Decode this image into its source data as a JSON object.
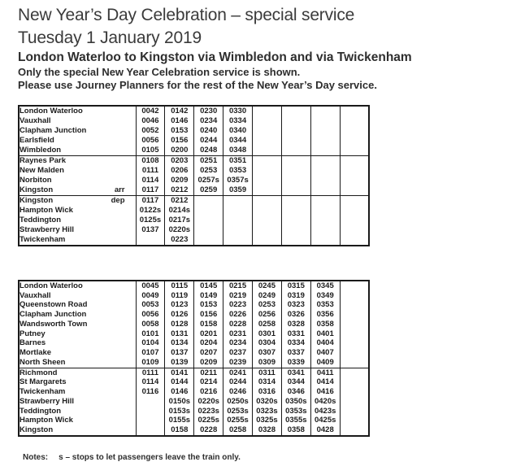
{
  "colors": {
    "background": "#ffffff",
    "heading_text": "#3b3b3b",
    "body_text": "#2e2e2e",
    "table_text": "#1c1c1c",
    "table_border": "#1a1a1a"
  },
  "header": {
    "title_line1": "New Year’s Day Celebration – special service",
    "title_line2": "Tuesday 1 January 2019",
    "route": "London Waterloo to Kingston via Wimbledon and via Twickenham",
    "note1": "Only the special New Year Celebration service is shown.",
    "note2": "Please use Journey Planners for the rest of the New Year’s Day service."
  },
  "tables": [
    {
      "id": "waterloo-to-kingston-via-wimbledon",
      "time_columns": 8,
      "sections": [
        {
          "rows": [
            {
              "station": "London Waterloo",
              "note": "",
              "times": [
                "0042",
                "0142",
                "0230",
                "0330",
                "",
                "",
                "",
                ""
              ]
            },
            {
              "station": "Vauxhall",
              "note": "",
              "times": [
                "0046",
                "0146",
                "0234",
                "0334",
                "",
                "",
                "",
                ""
              ]
            },
            {
              "station": "Clapham Junction",
              "note": "",
              "times": [
                "0052",
                "0153",
                "0240",
                "0340",
                "",
                "",
                "",
                ""
              ]
            },
            {
              "station": "Earlsfield",
              "note": "",
              "times": [
                "0056",
                "0156",
                "0244",
                "0344",
                "",
                "",
                "",
                ""
              ]
            },
            {
              "station": "Wimbledon",
              "note": "",
              "times": [
                "0105",
                "0200",
                "0248",
                "0348",
                "",
                "",
                "",
                ""
              ]
            }
          ]
        },
        {
          "rows": [
            {
              "station": "Raynes Park",
              "note": "",
              "times": [
                "0108",
                "0203",
                "0251",
                "0351",
                "",
                "",
                "",
                ""
              ]
            },
            {
              "station": "New Malden",
              "note": "",
              "times": [
                "0111",
                "0206",
                "0253",
                "0353",
                "",
                "",
                "",
                ""
              ]
            },
            {
              "station": "Norbiton",
              "note": "",
              "times": [
                "0114",
                "0209",
                "0257s",
                "0357s",
                "",
                "",
                "",
                ""
              ]
            },
            {
              "station": "Kingston",
              "note": "arr",
              "times": [
                "0117",
                "0212",
                "0259",
                "0359",
                "",
                "",
                "",
                ""
              ]
            }
          ]
        },
        {
          "rows": [
            {
              "station": "Kingston",
              "note": "dep",
              "times": [
                "0117",
                "0212",
                "",
                "",
                "",
                "",
                "",
                ""
              ]
            },
            {
              "station": "Hampton Wick",
              "note": "",
              "times": [
                "0122s",
                "0214s",
                "",
                "",
                "",
                "",
                "",
                ""
              ]
            },
            {
              "station": "Teddington",
              "note": "",
              "times": [
                "0125s",
                "0217s",
                "",
                "",
                "",
                "",
                "",
                ""
              ]
            },
            {
              "station": "Strawberry Hill",
              "note": "",
              "times": [
                "0137",
                "0220s",
                "",
                "",
                "",
                "",
                "",
                ""
              ]
            },
            {
              "station": "Twickenham",
              "note": "",
              "times": [
                "",
                "0223",
                "",
                "",
                "",
                "",
                "",
                ""
              ]
            }
          ]
        }
      ]
    },
    {
      "id": "waterloo-to-kingston-via-twickenham",
      "time_columns": 8,
      "sections": [
        {
          "rows": [
            {
              "station": "London Waterloo",
              "note": "",
              "times": [
                "0045",
                "0115",
                "0145",
                "0215",
                "0245",
                "0315",
                "0345",
                ""
              ]
            },
            {
              "station": "Vauxhall",
              "note": "",
              "times": [
                "0049",
                "0119",
                "0149",
                "0219",
                "0249",
                "0319",
                "0349",
                ""
              ]
            },
            {
              "station": "Queenstown Road",
              "note": "",
              "times": [
                "0053",
                "0123",
                "0153",
                "0223",
                "0253",
                "0323",
                "0353",
                ""
              ]
            },
            {
              "station": "Clapham Junction",
              "note": "",
              "times": [
                "0056",
                "0126",
                "0156",
                "0226",
                "0256",
                "0326",
                "0356",
                ""
              ]
            },
            {
              "station": "Wandsworth Town",
              "note": "",
              "times": [
                "0058",
                "0128",
                "0158",
                "0228",
                "0258",
                "0328",
                "0358",
                ""
              ]
            },
            {
              "station": "Putney",
              "note": "",
              "times": [
                "0101",
                "0131",
                "0201",
                "0231",
                "0301",
                "0331",
                "0401",
                ""
              ]
            },
            {
              "station": "Barnes",
              "note": "",
              "times": [
                "0104",
                "0134",
                "0204",
                "0234",
                "0304",
                "0334",
                "0404",
                ""
              ]
            },
            {
              "station": "Mortlake",
              "note": "",
              "times": [
                "0107",
                "0137",
                "0207",
                "0237",
                "0307",
                "0337",
                "0407",
                ""
              ]
            },
            {
              "station": "North Sheen",
              "note": "",
              "times": [
                "0109",
                "0139",
                "0209",
                "0239",
                "0309",
                "0339",
                "0409",
                ""
              ]
            }
          ]
        },
        {
          "rows": [
            {
              "station": "Richmond",
              "note": "",
              "times": [
                "0111",
                "0141",
                "0211",
                "0241",
                "0311",
                "0341",
                "0411",
                ""
              ]
            },
            {
              "station": "St Margarets",
              "note": "",
              "times": [
                "0114",
                "0144",
                "0214",
                "0244",
                "0314",
                "0344",
                "0414",
                ""
              ]
            },
            {
              "station": "Twickenham",
              "note": "",
              "times": [
                "0116",
                "0146",
                "0216",
                "0246",
                "0316",
                "0346",
                "0416",
                ""
              ]
            },
            {
              "station": "Strawberry Hill",
              "note": "",
              "times": [
                "",
                "0150s",
                "0220s",
                "0250s",
                "0320s",
                "0350s",
                "0420s",
                ""
              ]
            },
            {
              "station": "Teddington",
              "note": "",
              "times": [
                "",
                "0153s",
                "0223s",
                "0253s",
                "0323s",
                "0353s",
                "0423s",
                ""
              ]
            },
            {
              "station": "Hampton Wick",
              "note": "",
              "times": [
                "",
                "0155s",
                "0225s",
                "0255s",
                "0325s",
                "0355s",
                "0425s",
                ""
              ]
            },
            {
              "station": "Kingston",
              "note": "",
              "times": [
                "",
                "0158",
                "0228",
                "0258",
                "0328",
                "0358",
                "0428",
                ""
              ]
            }
          ]
        }
      ]
    }
  ],
  "footer": {
    "notes_label": "Notes:",
    "notes_text": "s – stops to let passengers leave the train only."
  }
}
